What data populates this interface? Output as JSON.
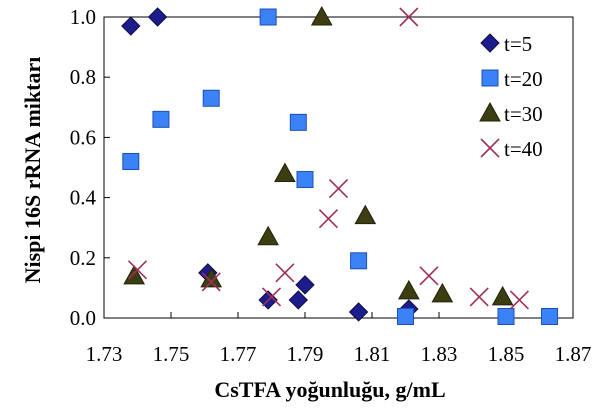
{
  "chart_data": {
    "type": "scatter",
    "xlabel": "CsTFA yoğunluğu, g/mL",
    "ylabel": "Nispi 16S rRNA miktarı",
    "xlim": [
      1.73,
      1.87
    ],
    "ylim": [
      0.0,
      1.0
    ],
    "x_ticks": [
      "1.73",
      "1.75",
      "1.77",
      "1.79",
      "1.81",
      "1.83",
      "1.85",
      "1.87"
    ],
    "y_ticks": [
      "0.0",
      "0.2",
      "0.4",
      "0.6",
      "0.8",
      "1.0"
    ],
    "legend_position": "top-right",
    "series": [
      {
        "name": "t=5",
        "marker": "diamond",
        "color": "#1c1c8c",
        "points": [
          [
            1.738,
            0.97
          ],
          [
            1.746,
            1.0
          ],
          [
            1.761,
            0.15
          ],
          [
            1.779,
            0.06
          ],
          [
            1.788,
            0.06
          ],
          [
            1.79,
            0.11
          ],
          [
            1.806,
            0.02
          ],
          [
            1.821,
            0.03
          ]
        ]
      },
      {
        "name": "t=20",
        "marker": "square",
        "color": "#3b82f6",
        "points": [
          [
            1.738,
            0.52
          ],
          [
            1.747,
            0.66
          ],
          [
            1.762,
            0.73
          ],
          [
            1.779,
            1.0
          ],
          [
            1.788,
            0.65
          ],
          [
            1.79,
            0.46
          ],
          [
            1.806,
            0.19
          ],
          [
            1.82,
            0.005
          ],
          [
            1.85,
            0.005
          ],
          [
            1.863,
            0.005
          ]
        ]
      },
      {
        "name": "t=30",
        "marker": "triangle",
        "color": "#3d3d12",
        "points": [
          [
            1.739,
            0.14
          ],
          [
            1.762,
            0.13
          ],
          [
            1.779,
            0.27
          ],
          [
            1.784,
            0.48
          ],
          [
            1.795,
            1.0
          ],
          [
            1.808,
            0.34
          ],
          [
            1.821,
            0.09
          ],
          [
            1.831,
            0.08
          ],
          [
            1.849,
            0.07
          ]
        ]
      },
      {
        "name": "t=40",
        "marker": "x",
        "color": "#a0305a",
        "points": [
          [
            1.74,
            0.16
          ],
          [
            1.762,
            0.12
          ],
          [
            1.78,
            0.07
          ],
          [
            1.784,
            0.15
          ],
          [
            1.797,
            0.33
          ],
          [
            1.8,
            0.43
          ],
          [
            1.821,
            1.0
          ],
          [
            1.827,
            0.14
          ],
          [
            1.842,
            0.07
          ],
          [
            1.854,
            0.06
          ]
        ]
      }
    ]
  }
}
